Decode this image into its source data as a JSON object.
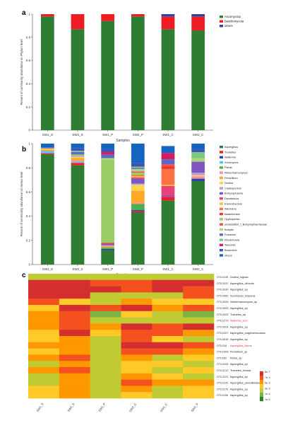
{
  "chart_data": [
    {
      "type": "bar",
      "stacked": true,
      "panel_label": "a",
      "ylabel": "Percent of community abundance on Phylum level",
      "xlabel": "Samples",
      "ylim": [
        0,
        1
      ],
      "yticks": [
        "0",
        "0.2",
        "0.4",
        "0.6",
        "0.8",
        "1"
      ],
      "categories": [
        "SW1_S",
        "SW2_S",
        "SW1_P",
        "SW2_P",
        "SW1_C",
        "SW2_C"
      ],
      "legend_position": "right",
      "series": [
        {
          "name": "Ascomycota",
          "color": "#2e7d32",
          "values": [
            0.98,
            0.87,
            0.94,
            0.98,
            0.87,
            0.86
          ]
        },
        {
          "name": "Basidiomycota",
          "color": "#ee1c25",
          "values": [
            0.02,
            0.13,
            0.06,
            0.02,
            0.11,
            0.12
          ]
        },
        {
          "name": "others",
          "color": "#2a45a6",
          "values": [
            0.0,
            0.0,
            0.0,
            0.0,
            0.02,
            0.02
          ]
        }
      ]
    },
    {
      "type": "bar",
      "stacked": true,
      "panel_label": "b",
      "ylabel": "Percent of community abundance on Genus level",
      "xlabel": "Samples",
      "ylim": [
        0,
        1
      ],
      "yticks": [
        "0",
        "0.2",
        "0.4",
        "0.6",
        "0.8",
        "1"
      ],
      "categories": [
        "SW1_S",
        "SW2_S",
        "SW1_P",
        "SW2_P",
        "SW1_C",
        "SW2_C"
      ],
      "legend_position": "right",
      "series": [
        {
          "name": "Aspergillus",
          "color": "#2e7d32",
          "values": [
            0.91,
            0.82,
            0.12,
            0.43,
            0.53,
            0.69
          ]
        },
        {
          "name": "Trametes",
          "color": "#ee1c25",
          "values": [
            0.01,
            0.02,
            0.0,
            0.01,
            0.03,
            0.0
          ]
        },
        {
          "name": "Wallemia",
          "color": "#2a45a6",
          "values": [
            0.0,
            0.0,
            0.01,
            0.01,
            0.0,
            0.02
          ]
        },
        {
          "name": "Xeromyces",
          "color": "#4fc3f7",
          "values": [
            0.02,
            0.01,
            0.0,
            0.0,
            0.0,
            0.0
          ]
        },
        {
          "name": "Pichia",
          "color": "#4caf50",
          "values": [
            0.0,
            0.0,
            0.01,
            0.05,
            0.0,
            0.0
          ]
        },
        {
          "name": "Wickerhamomyces",
          "color": "#f48fb1",
          "values": [
            0.0,
            0.01,
            0.0,
            0.01,
            0.0,
            0.02
          ]
        },
        {
          "name": "Penicillium",
          "color": "#ffa726",
          "values": [
            0.01,
            0.02,
            0.01,
            0.1,
            0.0,
            0.0
          ]
        },
        {
          "name": "Diutina",
          "color": "#ffd54f",
          "values": [
            0.01,
            0.01,
            0.0,
            0.05,
            0.0,
            0.01
          ]
        },
        {
          "name": "Cladosporium",
          "color": "#b39ddb",
          "values": [
            0.0,
            0.01,
            0.01,
            0.01,
            0.0,
            0.02
          ]
        },
        {
          "name": "Botryosphaeria",
          "color": "#7e57c2",
          "values": [
            0.0,
            0.0,
            0.01,
            0.04,
            0.01,
            0.09
          ]
        },
        {
          "name": "Dipodascus",
          "color": "#ec407a",
          "values": [
            0.0,
            0.0,
            0.0,
            0.01,
            0.08,
            0.0
          ]
        },
        {
          "name": "Eremothecium",
          "color": "#fbc02d",
          "values": [
            0.0,
            0.0,
            0.0,
            0.01,
            0.01,
            0.0
          ]
        },
        {
          "name": "Alternaria",
          "color": "#ff7043",
          "values": [
            0.0,
            0.0,
            0.0,
            0.01,
            0.13,
            0.0
          ]
        },
        {
          "name": "Issatchenkia",
          "color": "#e53935",
          "values": [
            0.0,
            0.0,
            0.01,
            0.0,
            0.02,
            0.0
          ]
        },
        {
          "name": "Hyphopichia",
          "color": "#9ccc65",
          "values": [
            0.0,
            0.01,
            0.69,
            0.02,
            0.0,
            0.01
          ]
        },
        {
          "name": "unclassified_f_Botryosphaeriaceae",
          "color": "#ef5350",
          "values": [
            0.0,
            0.0,
            0.0,
            0.01,
            0.02,
            0.0
          ]
        },
        {
          "name": "Botrytis",
          "color": "#aed581",
          "values": [
            0.0,
            0.0,
            0.01,
            0.02,
            0.0,
            0.02
          ]
        },
        {
          "name": "Fusarium",
          "color": "#5c6bc0",
          "values": [
            0.01,
            0.02,
            0.03,
            0.01,
            0.04,
            0.0
          ]
        },
        {
          "name": "Rhodotorula",
          "color": "#81c784",
          "values": [
            0.0,
            0.01,
            0.0,
            0.01,
            0.0,
            0.05
          ]
        },
        {
          "name": "Tausonia",
          "color": "#d81b60",
          "values": [
            0.0,
            0.0,
            0.02,
            0.0,
            0.05,
            0.0
          ]
        },
        {
          "name": "Beauveria",
          "color": "#3f51b5",
          "values": [
            0.0,
            0.02,
            0.02,
            0.03,
            0.01,
            0.02
          ]
        },
        {
          "name": "others",
          "color": "#1565c0",
          "values": [
            0.03,
            0.04,
            0.05,
            0.16,
            0.05,
            0.05
          ]
        }
      ]
    },
    {
      "type": "heatmap",
      "panel_label": "c",
      "columns": [
        "SW1_S",
        "SW2_S",
        "SW1_P",
        "SW2_C",
        "SW1_C",
        "SW2_P"
      ],
      "rows": [
        {
          "otu": "OTU1149",
          "name": "Diutina_rugosa",
          "highlight": false
        },
        {
          "otu": "OTU1537",
          "name": "Aspergillus_vitricola",
          "highlight": false
        },
        {
          "otu": "OTU1630",
          "name": "Aspergillus_sp",
          "highlight": false
        },
        {
          "otu": "OTU1582",
          "name": "Xeromyces_bisporus",
          "highlight": false
        },
        {
          "otu": "OTU1528",
          "name": "Wickerhamomyces_sp",
          "highlight": false
        },
        {
          "otu": "OTU1505",
          "name": "Aspergillus_sp",
          "highlight": false
        },
        {
          "otu": "OTU1005",
          "name": "Trametes_sp",
          "highlight": false
        },
        {
          "otu": "OTU1273",
          "name": "Wallemia_sebi",
          "highlight": true
        },
        {
          "otu": "OTU1504",
          "name": "Aspergillus_sp",
          "highlight": false
        },
        {
          "otu": "OTU1497",
          "name": "Aspergillus_magnivesiculatus",
          "highlight": false
        },
        {
          "otu": "OTU1618",
          "name": "Aspergillus_sp",
          "highlight": false
        },
        {
          "otu": "OTU118",
          "name": "Aspergillus_flavus",
          "highlight": true
        },
        {
          "otu": "OTU1308",
          "name": "Penicillium_sp",
          "highlight": false
        },
        {
          "otu": "OTU282",
          "name": "Pichia_sp",
          "highlight": false
        },
        {
          "otu": "OTU1206",
          "name": "Aspergillus_sp",
          "highlight": false
        },
        {
          "otu": "OTU1212",
          "name": "Trametes_hirsuta",
          "highlight": false
        },
        {
          "otu": "OTU1221",
          "name": "Aspergillus_sp",
          "highlight": false
        },
        {
          "otu": "OTU1142",
          "name": "Aspergillus_penicillioides",
          "highlight": false
        },
        {
          "otu": "OTU1176",
          "name": "Aspergillus_sp",
          "highlight": false
        },
        {
          "otu": "OTU1156",
          "name": "Aspergillus_sp",
          "highlight": false
        }
      ],
      "values": [
        [
          2,
          2,
          2,
          2,
          2,
          2
        ],
        [
          7,
          7,
          5,
          5,
          7,
          6
        ],
        [
          7,
          7,
          6,
          5,
          6,
          5
        ],
        [
          6,
          6,
          2,
          2,
          2,
          5
        ],
        [
          5,
          3,
          2,
          4,
          3,
          3
        ],
        [
          3,
          6,
          5,
          6,
          4,
          5
        ],
        [
          4,
          5,
          1,
          3,
          2,
          1
        ],
        [
          4,
          5,
          2,
          2,
          2,
          2
        ],
        [
          4,
          5,
          4,
          6,
          5,
          6
        ],
        [
          3,
          6,
          3,
          5,
          5,
          4
        ],
        [
          3,
          4,
          2,
          5,
          3,
          2
        ],
        [
          4,
          4,
          2,
          6,
          6,
          5
        ],
        [
          3,
          4,
          2,
          5,
          5,
          4
        ],
        [
          4,
          5,
          2,
          4,
          2,
          3
        ],
        [
          2,
          4,
          2,
          3,
          3,
          2
        ],
        [
          4,
          5,
          2,
          3,
          2,
          3
        ],
        [
          2,
          4,
          2,
          4,
          3,
          2
        ],
        [
          2,
          4,
          2,
          5,
          4,
          4
        ],
        [
          3,
          4,
          2,
          4,
          2,
          3
        ],
        [
          3,
          4,
          2,
          3,
          2,
          3
        ]
      ],
      "colorbar": {
        "labels": [
          "5e-7",
          "7e-3",
          "5e-3",
          "3e-3",
          "1e-4",
          "1e-5"
        ],
        "colors": [
          "#d32f2f",
          "#f4511e",
          "#ff9800",
          "#ffca28",
          "#c0ca33",
          "#7cb342",
          "#2e7d32"
        ]
      }
    }
  ]
}
